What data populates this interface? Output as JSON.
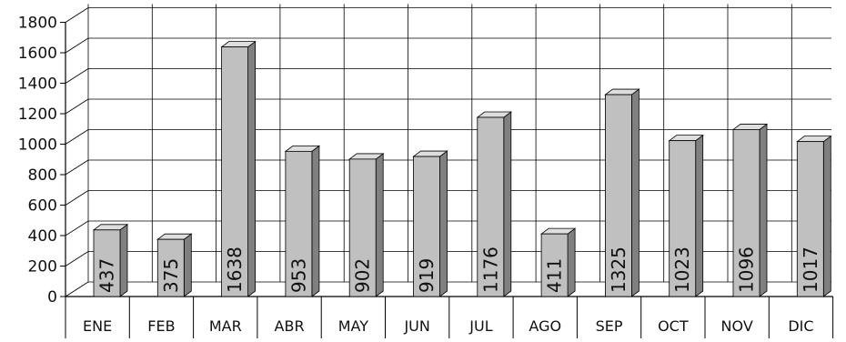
{
  "chart_data": {
    "type": "bar",
    "title": "",
    "xlabel": "",
    "ylabel": "",
    "ylim": [
      0,
      1800
    ],
    "yticks": [
      0,
      200,
      400,
      600,
      800,
      1000,
      1200,
      1400,
      1600,
      1800
    ],
    "categories": [
      "ENE",
      "FEB",
      "MAR",
      "ABR",
      "MAY",
      "JUN",
      "JUL",
      "AGO",
      "SEP",
      "OCT",
      "NOV",
      "DIC"
    ],
    "values": [
      437,
      375,
      1638,
      953,
      902,
      919,
      1176,
      411,
      1325,
      1023,
      1096,
      1017
    ],
    "grid": true,
    "three_d": true,
    "data_labels": "rotated-inside-bar",
    "colors": {
      "bar_front": "#c0c0c0",
      "bar_side": "#808080",
      "bar_top": "#dedede",
      "grid": "#000000"
    }
  }
}
